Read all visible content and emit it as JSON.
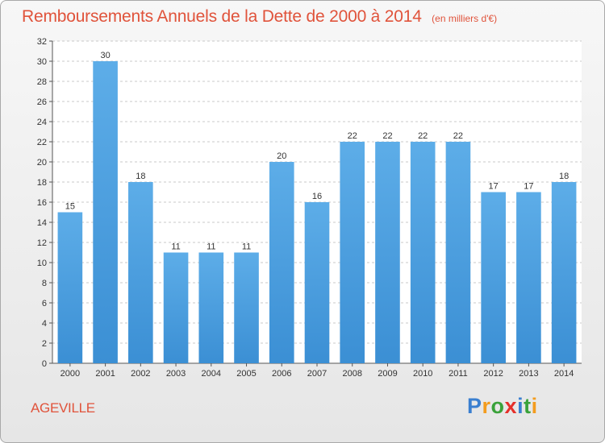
{
  "chart_data": {
    "type": "bar",
    "title": "Remboursements Annuels de la Dette de 2000 à 2014",
    "subtitle": "(en milliers d'€)",
    "categories": [
      "2000",
      "2001",
      "2002",
      "2003",
      "2004",
      "2005",
      "2006",
      "2007",
      "2008",
      "2009",
      "2010",
      "2011",
      "2012",
      "2013",
      "2014"
    ],
    "values": [
      15,
      30,
      18,
      11,
      11,
      11,
      20,
      16,
      22,
      22,
      22,
      22,
      17,
      17,
      18
    ],
    "ylim": [
      0,
      32
    ],
    "yticks": [
      0,
      2,
      4,
      6,
      8,
      10,
      12,
      14,
      16,
      18,
      20,
      22,
      24,
      26,
      28,
      30,
      32
    ],
    "xlabel": "",
    "ylabel": "",
    "grid": true,
    "legend": "none",
    "bar_color": "#3b8fd4",
    "bar_color_light": "#5dade8"
  },
  "commune": "AGEVILLE",
  "logo": {
    "letters": [
      "P",
      "r",
      "o",
      "x",
      "i",
      "t",
      "i"
    ],
    "colors": [
      "#3a7fd0",
      "#f39c1e",
      "#3aa23a",
      "#e5302a",
      "#3a7fd0",
      "#3aa23a",
      "#f39c1e"
    ]
  }
}
